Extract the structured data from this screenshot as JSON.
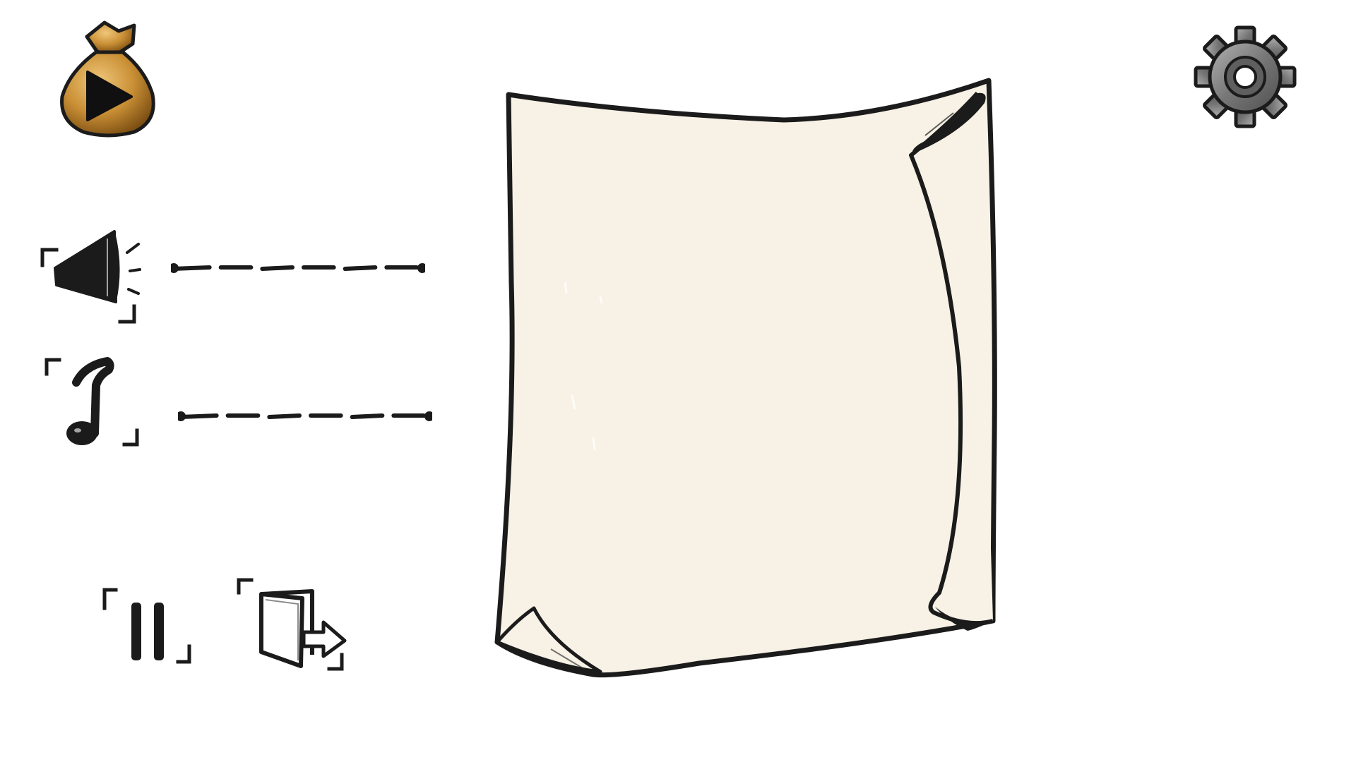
{
  "icons": {
    "play": "coin-bag-play-icon",
    "settings": "gear-icon",
    "sound": "megaphone-icon",
    "music": "music-note-icon",
    "pause": "pause-icon",
    "exit": "exit-door-icon"
  },
  "sliders": {
    "sound_level": 1.0,
    "music_level": 1.0
  },
  "colors": {
    "ink": "#1b1b1b",
    "paper": "#f7f1e6",
    "bag_gold": "#c98f35",
    "bag_dark": "#7a4d12",
    "gear_gray": "#6f6f6f",
    "gear_light": "#a8a8a8"
  }
}
